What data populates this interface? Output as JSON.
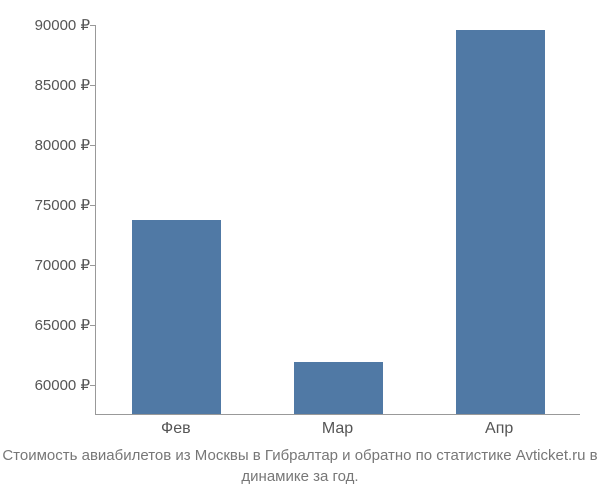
{
  "chart": {
    "type": "bar",
    "categories": [
      "Фев",
      "Мар",
      "Апр"
    ],
    "values": [
      73700,
      61800,
      89500
    ],
    "bar_color": "#5079a5",
    "bar_width_ratio": 0.55,
    "ylim": [
      57500,
      90000
    ],
    "yticks": [
      60000,
      65000,
      70000,
      75000,
      80000,
      85000,
      90000
    ],
    "ytick_labels": [
      "60000 ₽",
      "65000 ₽",
      "70000 ₽",
      "75000 ₽",
      "80000 ₽",
      "85000 ₽",
      "90000 ₽"
    ],
    "axis_color": "#999999",
    "tick_label_color": "#555555",
    "tick_label_fontsize": 15,
    "x_label_fontsize": 16,
    "background_color": "#ffffff",
    "caption": "Стоимость авиабилетов из Москвы в Гибралтар и обратно по статистике Avticket.ru в динамике за год.",
    "caption_color": "#777777",
    "caption_fontsize": 15
  }
}
